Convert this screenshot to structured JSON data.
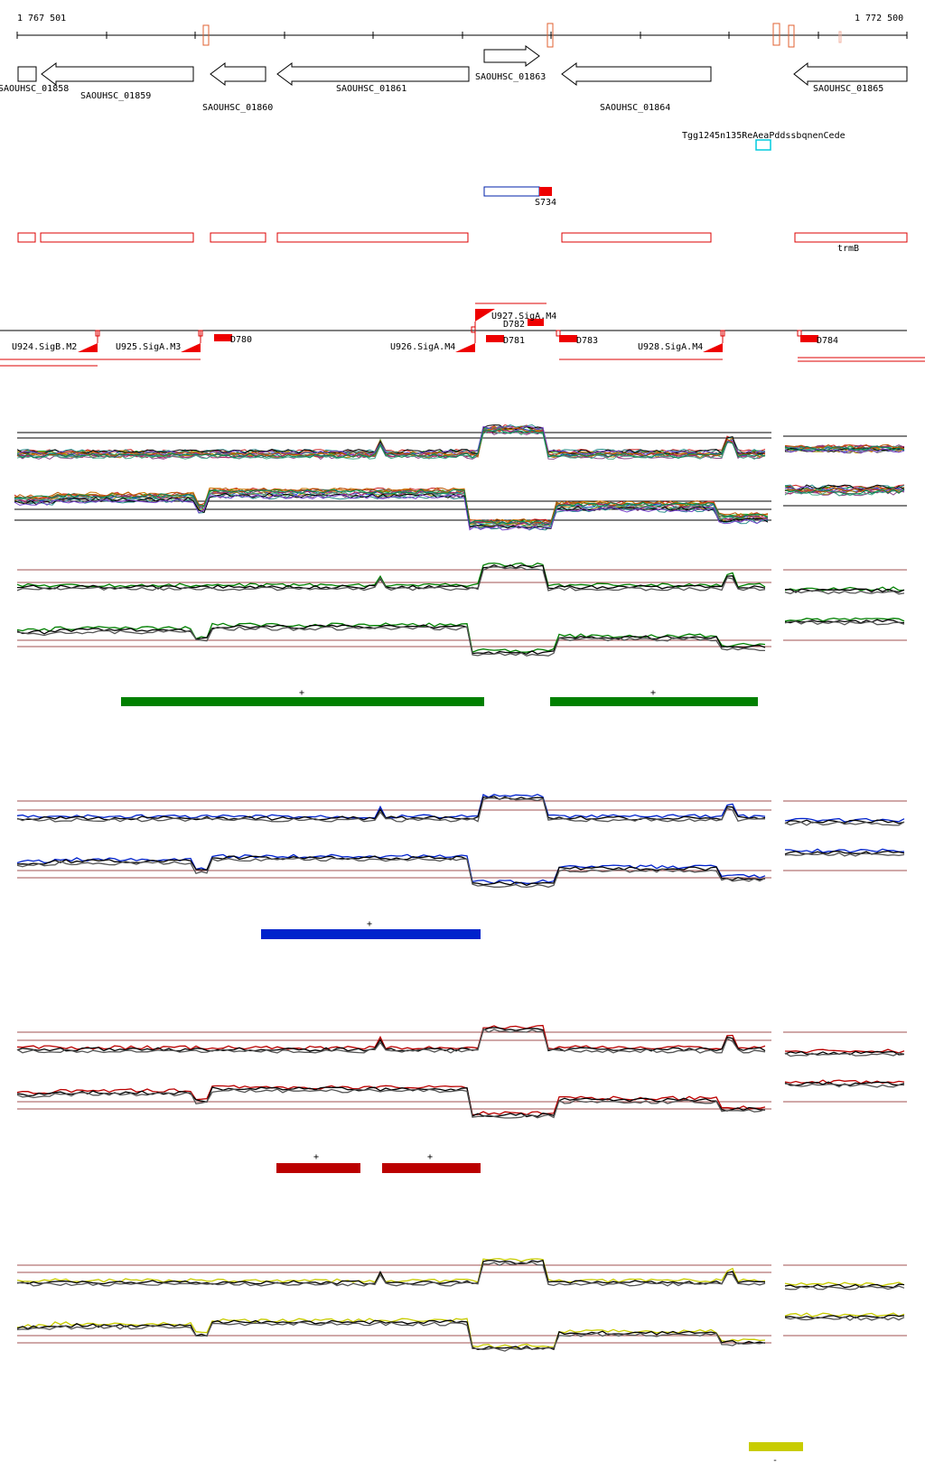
{
  "coords": {
    "start": "1 767 501",
    "end": "1 772 500"
  },
  "genes": [
    {
      "label": "SAOUHSC_01858"
    },
    {
      "label": "SAOUHSC_01859"
    },
    {
      "label": "SAOUHSC_01860"
    },
    {
      "label": "SAOUHSC_01861"
    },
    {
      "label": "SAOUHSC_01863"
    },
    {
      "label": "SAOUHSC_01864"
    },
    {
      "label": "SAOUHSC_01865"
    }
  ],
  "overlap_label": "Tgg1245n135ReAeaPddssbqnenCede",
  "s_label": "S734",
  "trmb_label": "trmB",
  "segments": [
    {
      "label": "U924.SigB.M2"
    },
    {
      "label": "U925.SigA.M3"
    },
    {
      "label": "D780"
    },
    {
      "label": "U926.SigA.M4"
    },
    {
      "label": "U927.SigA.M4"
    },
    {
      "label": "D782"
    },
    {
      "label": "D781"
    },
    {
      "label": "D783"
    },
    {
      "label": "U928.SigA.M4"
    },
    {
      "label": "D784"
    }
  ],
  "panel_colors": {
    "green": "#008000",
    "blue": "#0022cc",
    "red": "#bb0000",
    "yellow": "#c8cc00"
  },
  "panel_marks": {
    "green_1": "+",
    "green_2": "+",
    "blue_1": "+",
    "red_1": "+",
    "red_2": "+",
    "yellow_1": "-"
  }
}
